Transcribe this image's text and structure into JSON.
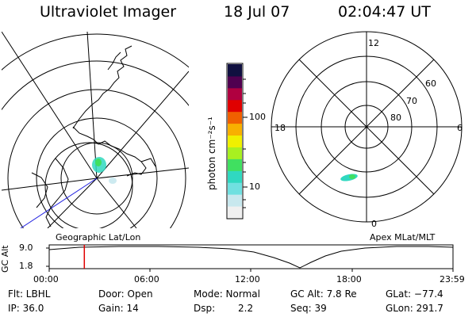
{
  "header": {
    "title": "Ultraviolet Imager",
    "date": "18 Jul 07",
    "time": "02:04:47 UT"
  },
  "left_panel": {
    "label": "Geographic Lat/Lon"
  },
  "right_panel": {
    "label": "Apex MLat/MLT",
    "mlt_labels": [
      "12",
      "18",
      "6",
      "0"
    ],
    "mlat_labels": [
      "60",
      "70",
      "80"
    ]
  },
  "colorbar": {
    "unit_label": "photon cm⁻²s⁻¹",
    "ticks": [
      "100",
      "10"
    ],
    "colors": [
      "#f0f0f0",
      "#c8e8ee",
      "#70e0e0",
      "#30d8c0",
      "#40e060",
      "#a8f020",
      "#f0f000",
      "#f8b000",
      "#f06000",
      "#e00000",
      "#b00040",
      "#500050",
      "#101040"
    ]
  },
  "timeline": {
    "ylabel": "GC Alt",
    "yticks": [
      "9.0",
      "1.8"
    ],
    "xticks": [
      "00:00",
      "06:00",
      "12:00",
      "18:00",
      "23:59"
    ],
    "marker_time_fraction": 0.087
  },
  "info": {
    "filter": "Flt: LBHL",
    "door": "Door: Open",
    "mode": "Mode: Normal",
    "gc_alt": "GC Alt: 7.8 Re",
    "glat": "GLat: −77.4",
    "ip": "IP: 36.0",
    "gain": "Gain: 14",
    "dsp_label": "Dsp:",
    "dsp_value": "2.2",
    "seq": "Seq: 39",
    "glon": "GLon: 291.7"
  }
}
